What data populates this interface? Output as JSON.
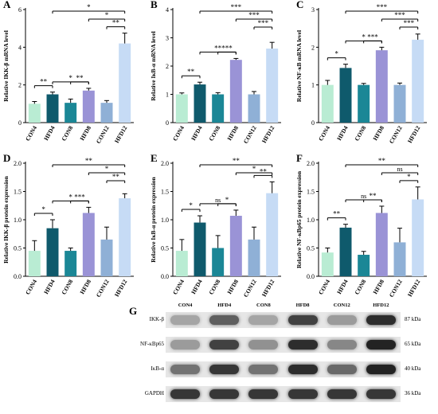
{
  "colors": [
    "#b9ecd3",
    "#0f5a6c",
    "#1b8796",
    "#9a93d6",
    "#8fb0d6",
    "#c6dbf5"
  ],
  "chart_data": [
    {
      "panel_label": "A",
      "type": "bar",
      "categories": [
        "CON4",
        "HFD4",
        "CON8",
        "HFD8",
        "CON12",
        "HFD12"
      ],
      "values": [
        1.0,
        1.5,
        1.05,
        1.7,
        1.05,
        4.2
      ],
      "errors": [
        0.12,
        0.12,
        0.2,
        0.12,
        0.12,
        0.55
      ],
      "ylabel": "Relative IKK-β mRNA level",
      "ylim": [
        0,
        6
      ],
      "yticks": [
        "0",
        "2",
        "4",
        "6"
      ],
      "significance": [
        {
          "from": 0,
          "to": 1,
          "label": "**",
          "level": 0
        },
        {
          "from": 1,
          "to": 3,
          "label": "*",
          "level": 1
        },
        {
          "from": 2,
          "to": 3,
          "label": "**",
          "level": 0
        },
        {
          "from": 4,
          "to": 5,
          "label": "**",
          "level": 2
        },
        {
          "from": 3,
          "to": 5,
          "label": "*",
          "level": 3
        },
        {
          "from": 1,
          "to": 5,
          "label": "*",
          "level": 4
        }
      ]
    },
    {
      "panel_label": "B",
      "type": "bar",
      "categories": [
        "CON4",
        "HFD4",
        "CON8",
        "HFD8",
        "CON12",
        "HFD12"
      ],
      "values": [
        1.0,
        1.35,
        1.0,
        2.22,
        1.0,
        2.62
      ],
      "errors": [
        0.05,
        0.08,
        0.06,
        0.05,
        0.1,
        0.22
      ],
      "ylabel": "Relative IκB-α mRNA level",
      "ylim": [
        0,
        4
      ],
      "yticks": [
        "0",
        "1",
        "2",
        "3",
        "4"
      ],
      "significance": [
        {
          "from": 0,
          "to": 1,
          "label": "**",
          "level": 0
        },
        {
          "from": 1,
          "to": 3,
          "label": "**",
          "level": 1
        },
        {
          "from": 2,
          "to": 3,
          "label": "***",
          "level": 0
        },
        {
          "from": 4,
          "to": 5,
          "label": "***",
          "level": 2
        },
        {
          "from": 3,
          "to": 5,
          "label": "***",
          "level": 3
        },
        {
          "from": 1,
          "to": 5,
          "label": "***",
          "level": 4
        }
      ]
    },
    {
      "panel_label": "C",
      "type": "bar",
      "categories": [
        "CON4",
        "HFD4",
        "CON8",
        "HFD8",
        "CON12",
        "HFD12"
      ],
      "values": [
        1.0,
        1.45,
        1.0,
        1.92,
        1.0,
        2.2
      ],
      "errors": [
        0.12,
        0.1,
        0.04,
        0.08,
        0.05,
        0.15
      ],
      "ylabel": "Relative NF-κB mRNA level",
      "ylim": [
        0,
        3
      ],
      "yticks": [
        "0",
        "1",
        "2",
        "3"
      ],
      "significance": [
        {
          "from": 0,
          "to": 1,
          "label": "*",
          "level": 0
        },
        {
          "from": 1,
          "to": 3,
          "label": "*",
          "level": 1
        },
        {
          "from": 2,
          "to": 3,
          "label": "***",
          "level": 0
        },
        {
          "from": 4,
          "to": 5,
          "label": "***",
          "level": 2
        },
        {
          "from": 3,
          "to": 5,
          "label": "***",
          "level": 3
        },
        {
          "from": 1,
          "to": 5,
          "label": "***",
          "level": 4
        }
      ]
    },
    {
      "panel_label": "D",
      "type": "bar",
      "categories": [
        "CON4",
        "HFD4",
        "CON8",
        "HFD8",
        "CON12",
        "HFD12"
      ],
      "values": [
        0.45,
        0.85,
        0.45,
        1.12,
        0.65,
        1.38
      ],
      "errors": [
        0.18,
        0.15,
        0.05,
        0.1,
        0.22,
        0.08
      ],
      "ylabel": "Relative IKK-β protein expression",
      "ylim": [
        0,
        2.0
      ],
      "yticks": [
        "0.0",
        "0.5",
        "1.0",
        "1.5",
        "2.0"
      ],
      "significance": [
        {
          "from": 0,
          "to": 1,
          "label": "*",
          "level": 0
        },
        {
          "from": 1,
          "to": 3,
          "label": "*",
          "level": 1
        },
        {
          "from": 2,
          "to": 3,
          "label": "***",
          "level": 0
        },
        {
          "from": 4,
          "to": 5,
          "label": "**",
          "level": 2
        },
        {
          "from": 3,
          "to": 5,
          "label": "*",
          "level": 3
        },
        {
          "from": 1,
          "to": 5,
          "label": "**",
          "level": 4
        }
      ]
    },
    {
      "panel_label": "E",
      "type": "bar",
      "categories": [
        "CON4",
        "HFD4",
        "CON8",
        "HFD8",
        "CON12",
        "HFD12"
      ],
      "values": [
        0.45,
        0.95,
        0.5,
        1.07,
        0.65,
        1.47
      ],
      "errors": [
        0.2,
        0.12,
        0.22,
        0.1,
        0.22,
        0.2
      ],
      "ylabel": "Relative IκB-α protein expression",
      "ylim": [
        0,
        2.0
      ],
      "yticks": [
        "0.0",
        "0.5",
        "1.0",
        "1.5",
        "2.0"
      ],
      "significance": [
        {
          "from": 0,
          "to": 1,
          "label": "*",
          "level": 0
        },
        {
          "from": 1,
          "to": 3,
          "label": "ns",
          "level": 1
        },
        {
          "from": 2,
          "to": 3,
          "label": "*",
          "level": 0
        },
        {
          "from": 4,
          "to": 5,
          "label": "**",
          "level": 2
        },
        {
          "from": 3,
          "to": 5,
          "label": "*",
          "level": 3
        },
        {
          "from": 1,
          "to": 5,
          "label": "**",
          "level": 4
        }
      ]
    },
    {
      "panel_label": "F",
      "type": "bar",
      "categories": [
        "CON4",
        "HFD4",
        "CON8",
        "HFD8",
        "CON12",
        "HFD12"
      ],
      "values": [
        0.42,
        0.86,
        0.38,
        1.12,
        0.6,
        1.36
      ],
      "errors": [
        0.08,
        0.06,
        0.06,
        0.12,
        0.25,
        0.22
      ],
      "ylabel": "Relative NF-κBp65 protein expression",
      "ylim": [
        0,
        2.0
      ],
      "yticks": [
        "0.0",
        "0.5",
        "1.0",
        "1.5",
        "2.0"
      ],
      "significance": [
        {
          "from": 0,
          "to": 1,
          "label": "**",
          "level": 0
        },
        {
          "from": 1,
          "to": 3,
          "label": "ns",
          "level": 1
        },
        {
          "from": 2,
          "to": 3,
          "label": "**",
          "level": 0
        },
        {
          "from": 4,
          "to": 5,
          "label": "*",
          "level": 2
        },
        {
          "from": 3,
          "to": 5,
          "label": "ns",
          "level": 3
        },
        {
          "from": 1,
          "to": 5,
          "label": "**",
          "level": 4
        }
      ]
    }
  ],
  "blot": {
    "panel_label": "G",
    "lanes": [
      "CON4",
      "HFD4",
      "CON8",
      "HFD8",
      "CON12",
      "HFD12"
    ],
    "rows": [
      {
        "protein": "IKK-β",
        "kda": "87 kDa",
        "intensity": [
          0.35,
          0.7,
          0.35,
          0.85,
          0.4,
          0.95
        ]
      },
      {
        "protein": "NF-κBp65",
        "kda": "65 kDa",
        "intensity": [
          0.4,
          0.85,
          0.45,
          0.95,
          0.5,
          1.0
        ]
      },
      {
        "protein": "IκB-α",
        "kda": "40 kDa",
        "intensity": [
          0.6,
          0.9,
          0.6,
          0.95,
          0.65,
          1.0
        ]
      },
      {
        "protein": "GAPDH",
        "kda": "36 kDa",
        "intensity": [
          0.9,
          0.9,
          0.9,
          0.9,
          0.9,
          0.9
        ]
      }
    ]
  }
}
